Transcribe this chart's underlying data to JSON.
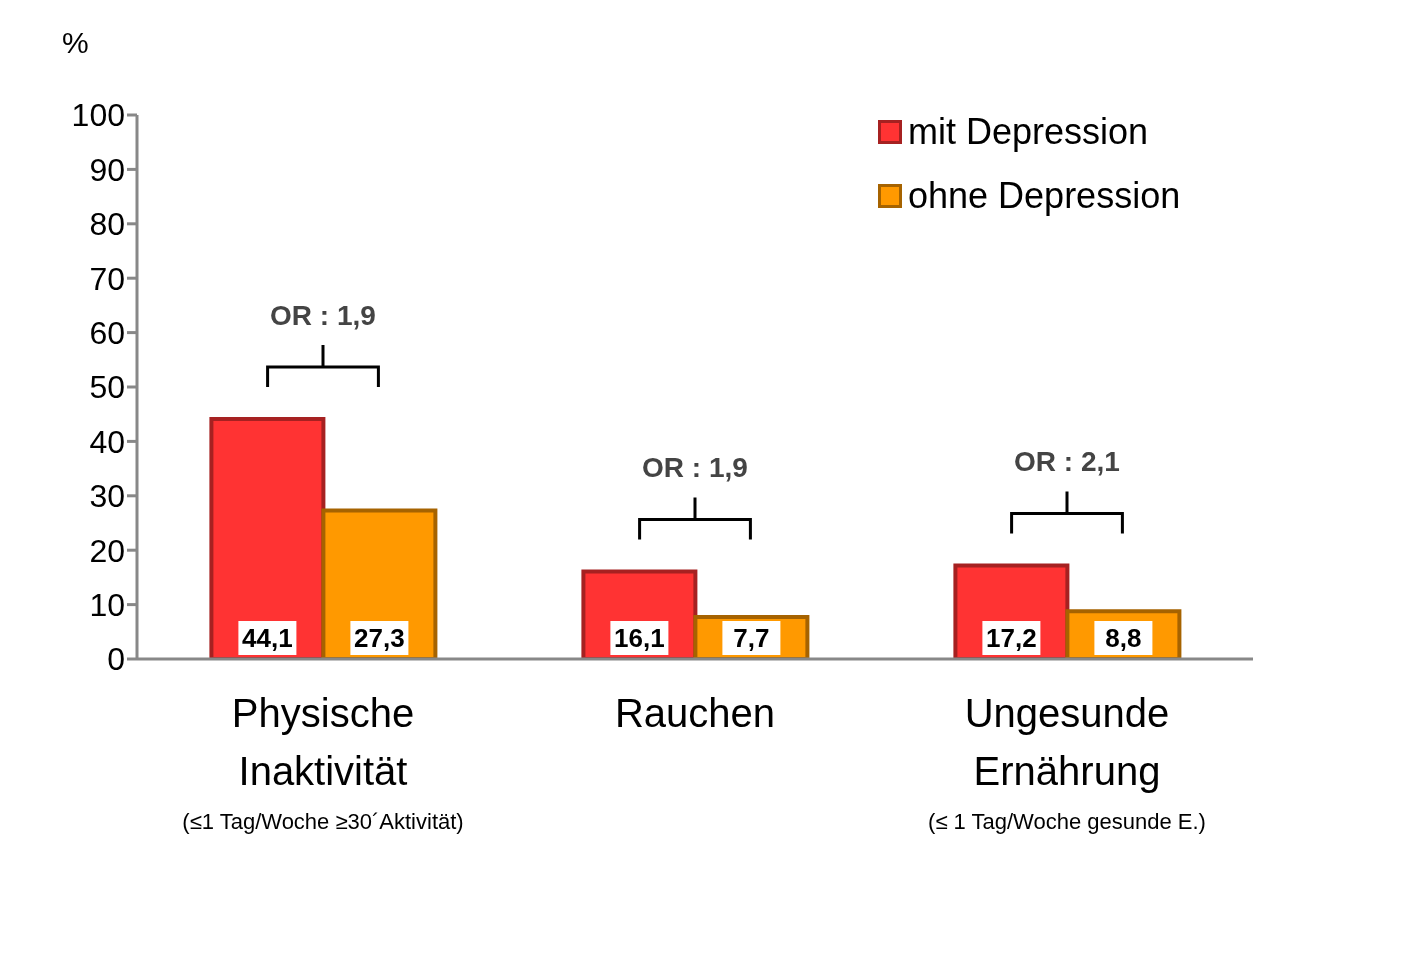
{
  "chart_data": {
    "type": "bar",
    "ylabel": "%",
    "categories": [
      "Physische Inaktivität (≤1 Tag/Woche ≥30´Aktivität)",
      "Rauchen",
      "Ungesunde Ernährung (≤ 1 Tag/Woche gesunde E.)"
    ],
    "series": [
      {
        "name": "mit Depression",
        "color": "#ff3333",
        "values": [
          44.1,
          16.1,
          17.2
        ],
        "value_labels": [
          "44,1",
          "16,1",
          "17,2"
        ]
      },
      {
        "name": "ohne Depression",
        "color": "#ff9900",
        "values": [
          27.3,
          7.7,
          8.8
        ],
        "value_labels": [
          "27,3",
          "7,7",
          "8,8"
        ]
      }
    ],
    "ylim": [
      0,
      100
    ],
    "yticks": [
      0,
      10,
      20,
      30,
      40,
      50,
      60,
      70,
      80,
      90,
      100
    ],
    "grid": false,
    "legend": "top right",
    "annotations": [
      "OR : 1,9",
      "OR : 1,9",
      "OR : 2,1"
    ]
  }
}
